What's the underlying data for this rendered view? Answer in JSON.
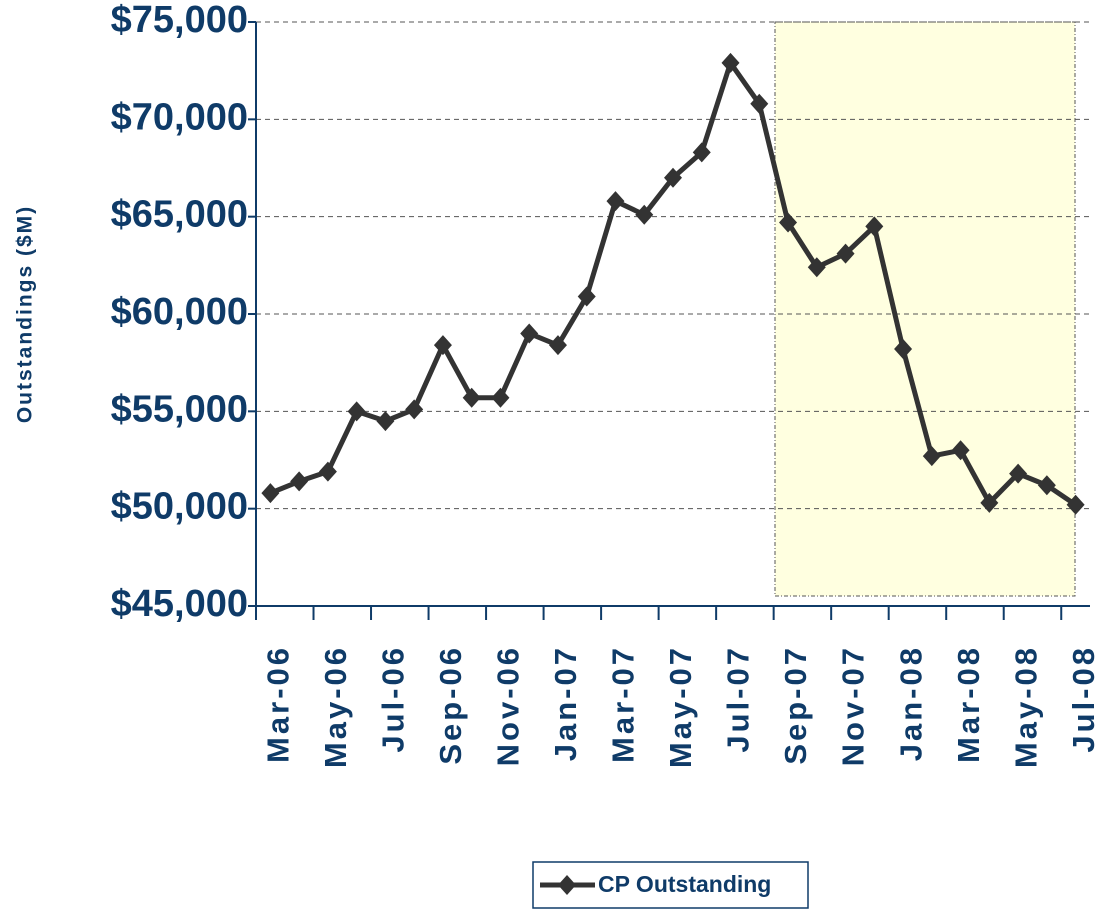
{
  "chart_data": {
    "type": "line",
    "y_axis_label": "Outstandings ($M)",
    "categories": [
      "Mar-06",
      null,
      "May-06",
      null,
      "Jul-06",
      null,
      "Sep-06",
      null,
      "Nov-06",
      null,
      "Jan-07",
      null,
      "Mar-07",
      null,
      "May-07",
      null,
      "Jul-07",
      null,
      "Sep-07",
      null,
      "Nov-07",
      null,
      "Jan-08",
      null,
      "Mar-08",
      null,
      "May-08",
      null,
      "Jul-08"
    ],
    "series": [
      {
        "name": "CP Outstanding",
        "color": "#333333",
        "values": [
          50800,
          51400,
          51900,
          55000,
          54500,
          55100,
          58400,
          55700,
          55700,
          59000,
          58400,
          60900,
          65800,
          65100,
          67000,
          68300,
          72900,
          70800,
          64700,
          62400,
          63100,
          64500,
          58200,
          52700,
          53000,
          50300,
          51800,
          51200,
          50200
        ]
      }
    ],
    "ylim": [
      45000,
      75000
    ],
    "yticks": [
      {
        "value": 45000,
        "label": "$45,000"
      },
      {
        "value": 50000,
        "label": "$50,000"
      },
      {
        "value": 55000,
        "label": "$55,000"
      },
      {
        "value": 60000,
        "label": "$60,000"
      },
      {
        "value": 65000,
        "label": "$65,000"
      },
      {
        "value": 70000,
        "label": "$70,000"
      },
      {
        "value": 75000,
        "label": "$75,000"
      }
    ],
    "grid": true
  }
}
